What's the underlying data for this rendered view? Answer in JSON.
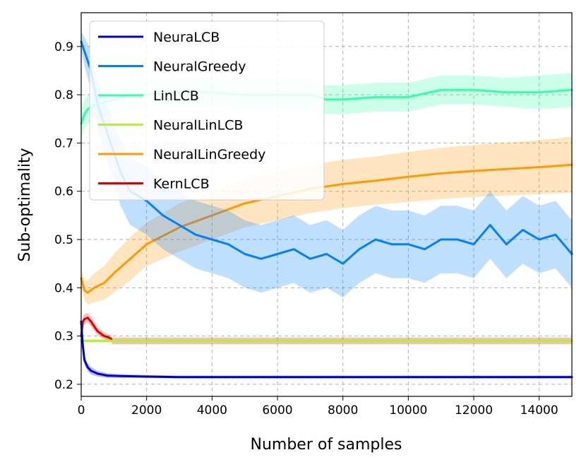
{
  "chart_data": {
    "type": "line",
    "title": "",
    "xlabel": "Number of samples",
    "ylabel": "Sub-optimality",
    "xlim": [
      0,
      15000
    ],
    "ylim": [
      0.175,
      0.97
    ],
    "xticks": [
      0,
      2000,
      4000,
      6000,
      8000,
      10000,
      12000,
      14000
    ],
    "yticks": [
      0.2,
      0.3,
      0.4,
      0.5,
      0.6,
      0.7,
      0.8,
      0.9
    ],
    "xtick_labels": [
      "0",
      "2000",
      "4000",
      "6000",
      "8000",
      "10000",
      "12000",
      "14000"
    ],
    "ytick_labels": [
      "0.2",
      "0.3",
      "0.4",
      "0.5",
      "0.6",
      "0.7",
      "0.8",
      "0.9"
    ],
    "grid": true,
    "legend_position": "top-left",
    "series": [
      {
        "name": "NeuraLCB",
        "color": "#0000cc",
        "x": [
          0,
          50,
          100,
          200,
          300,
          500,
          800,
          1200,
          2000,
          3000,
          5000,
          8000,
          11000,
          15000
        ],
        "y": [
          0.33,
          0.28,
          0.25,
          0.235,
          0.228,
          0.222,
          0.218,
          0.217,
          0.216,
          0.215,
          0.215,
          0.215,
          0.215,
          0.215
        ],
        "band": [
          0.012,
          0.012,
          0.01,
          0.008,
          0.008,
          0.006,
          0.005,
          0.004,
          0.003,
          0.003,
          0.003,
          0.003,
          0.003,
          0.003
        ]
      },
      {
        "name": "NeuralGreedy",
        "color": "#0080ff",
        "x": [
          0,
          100,
          300,
          500,
          800,
          1000,
          1200,
          1500,
          2000,
          2500,
          3000,
          3500,
          4000,
          4500,
          5000,
          5500,
          6000,
          6500,
          7000,
          7500,
          8000,
          8500,
          9000,
          9500,
          10000,
          10500,
          11000,
          11500,
          12000,
          12500,
          13000,
          13500,
          14000,
          14500,
          15000
        ],
        "y": [
          0.91,
          0.89,
          0.85,
          0.78,
          0.72,
          0.68,
          0.64,
          0.6,
          0.58,
          0.55,
          0.53,
          0.51,
          0.5,
          0.49,
          0.47,
          0.46,
          0.47,
          0.48,
          0.46,
          0.47,
          0.45,
          0.48,
          0.5,
          0.49,
          0.49,
          0.48,
          0.5,
          0.5,
          0.49,
          0.53,
          0.49,
          0.52,
          0.5,
          0.51,
          0.47
        ],
        "band": [
          0.02,
          0.03,
          0.04,
          0.05,
          0.06,
          0.06,
          0.07,
          0.07,
          0.07,
          0.07,
          0.07,
          0.07,
          0.07,
          0.07,
          0.07,
          0.07,
          0.07,
          0.07,
          0.07,
          0.07,
          0.07,
          0.07,
          0.07,
          0.07,
          0.07,
          0.07,
          0.07,
          0.07,
          0.07,
          0.07,
          0.07,
          0.07,
          0.07,
          0.07,
          0.07
        ]
      },
      {
        "name": "LinLCB",
        "color": "#33ffaa",
        "x": [
          0,
          100,
          200,
          300,
          500,
          700,
          1000,
          1500,
          2000,
          3000,
          4000,
          5000,
          6000,
          7000,
          7500,
          8000,
          9000,
          10000,
          11000,
          12000,
          13000,
          14000,
          15000
        ],
        "y": [
          0.74,
          0.76,
          0.77,
          0.775,
          0.78,
          0.785,
          0.79,
          0.8,
          0.8,
          0.805,
          0.805,
          0.8,
          0.8,
          0.8,
          0.79,
          0.79,
          0.795,
          0.795,
          0.81,
          0.81,
          0.805,
          0.805,
          0.81
        ],
        "band": [
          0.03,
          0.03,
          0.03,
          0.03,
          0.03,
          0.03,
          0.03,
          0.03,
          0.03,
          0.03,
          0.03,
          0.03,
          0.03,
          0.03,
          0.03,
          0.03,
          0.03,
          0.03,
          0.03,
          0.03,
          0.03,
          0.035,
          0.035
        ]
      },
      {
        "name": "NeuralLinLCB",
        "color": "#b2f030",
        "x": [
          0,
          15000
        ],
        "y": [
          0.29,
          0.29
        ],
        "band": [
          0.004,
          0.004
        ]
      },
      {
        "name": "NeuralLinGreedy",
        "color": "#ff9900",
        "x": [
          0,
          100,
          200,
          400,
          700,
          1000,
          1500,
          2000,
          3000,
          4000,
          5000,
          6000,
          7000,
          8000,
          9000,
          10000,
          11000,
          12000,
          13000,
          14000,
          15000
        ],
        "y": [
          0.42,
          0.395,
          0.39,
          0.4,
          0.41,
          0.43,
          0.46,
          0.49,
          0.525,
          0.55,
          0.575,
          0.59,
          0.605,
          0.615,
          0.622,
          0.63,
          0.637,
          0.642,
          0.646,
          0.65,
          0.655
        ],
        "band": [
          0.02,
          0.02,
          0.025,
          0.03,
          0.035,
          0.04,
          0.045,
          0.045,
          0.05,
          0.05,
          0.05,
          0.05,
          0.05,
          0.05,
          0.05,
          0.052,
          0.053,
          0.054,
          0.055,
          0.056,
          0.058
        ]
      },
      {
        "name": "KernLCB",
        "color": "#dd0000",
        "x": [
          0,
          50,
          100,
          200,
          300,
          400,
          500,
          600,
          700,
          800,
          900,
          950,
          1500,
          3000,
          6000,
          10000,
          15000
        ],
        "y": [
          0.3,
          0.33,
          0.335,
          0.338,
          0.33,
          0.32,
          0.31,
          0.305,
          0.3,
          0.298,
          0.295,
          0.29,
          0.29,
          0.29,
          0.29,
          0.29,
          0.29
        ],
        "band": [
          0.01,
          0.01,
          0.01,
          0.01,
          0.01,
          0.01,
          0.008,
          0.008,
          0.007,
          0.007,
          0.007,
          0.007,
          0.007,
          0.007,
          0.007,
          0.007,
          0.007
        ]
      }
    ]
  }
}
